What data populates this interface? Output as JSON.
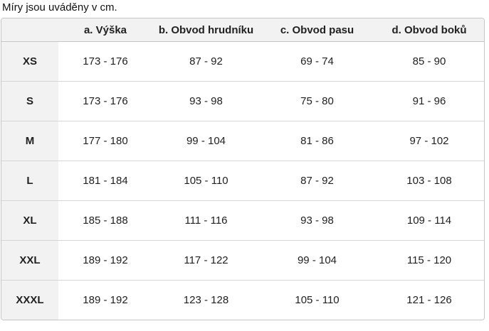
{
  "title": "Míry jsou uváděny v cm.",
  "colors": {
    "header_bg": "#f2f2f2",
    "border": "#c6c6c6",
    "row_border": "#d6d6d6",
    "text": "#212121"
  },
  "table": {
    "columns": [
      "",
      "a. Výška",
      "b. Obvod hrudníku",
      "c. Obvod pasu",
      "d. Obvod boků"
    ],
    "rows": [
      {
        "size": "XS",
        "values": [
          "173 - 176",
          "87 - 92",
          "69 - 74",
          "85 - 90"
        ]
      },
      {
        "size": "S",
        "values": [
          "173 - 176",
          "93 - 98",
          "75 - 80",
          "91 - 96"
        ]
      },
      {
        "size": "M",
        "values": [
          "177 - 180",
          "99 - 104",
          "81 - 86",
          "97 - 102"
        ]
      },
      {
        "size": "L",
        "values": [
          "181 - 184",
          "105 - 110",
          "87 - 92",
          "103 - 108"
        ]
      },
      {
        "size": "XL",
        "values": [
          "185 - 188",
          "111 - 116",
          "93 - 98",
          "109 - 114"
        ]
      },
      {
        "size": "XXL",
        "values": [
          "189 - 192",
          "117 - 122",
          "99 - 104",
          "115 - 120"
        ]
      },
      {
        "size": "XXXL",
        "values": [
          "189 - 192",
          "123 - 128",
          "105 - 110",
          "121 - 126"
        ]
      }
    ]
  }
}
